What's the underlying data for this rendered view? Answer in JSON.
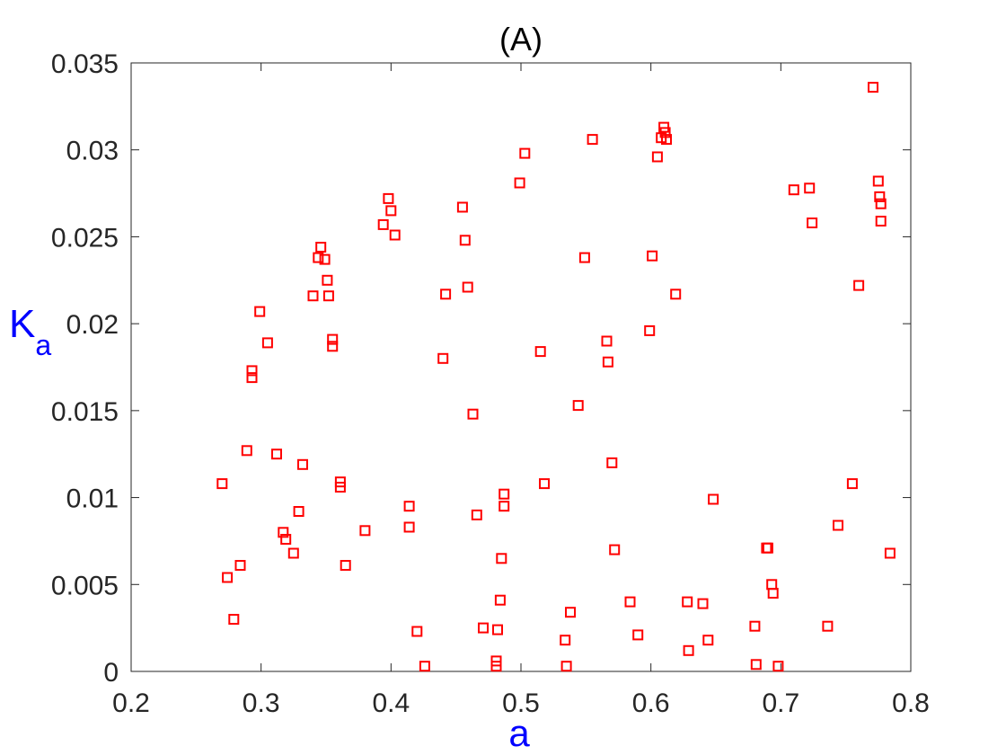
{
  "chart_data": {
    "type": "scatter",
    "title": "(A)",
    "xlabel": "a",
    "ylabel": {
      "main": "K",
      "sub": "a"
    },
    "xlim": [
      0.2,
      0.8
    ],
    "ylim": [
      0,
      0.035
    ],
    "x_ticks": [
      0.2,
      0.3,
      0.4,
      0.5,
      0.6,
      0.7,
      0.8
    ],
    "x_tick_labels": [
      "0.2",
      "0.3",
      "0.4",
      "0.5",
      "0.6",
      "0.7",
      "0.8"
    ],
    "y_ticks": [
      0,
      0.005,
      0.01,
      0.015,
      0.02,
      0.025,
      0.03,
      0.035
    ],
    "y_tick_labels": [
      "0",
      "0.005",
      "0.01",
      "0.015",
      "0.02",
      "0.025",
      "0.03",
      "0.035"
    ],
    "grid": false,
    "marker": "square",
    "marker_color": "#ff0000",
    "label_color": "#0000ff",
    "series": [
      {
        "points": [
          [
            0.27,
            0.0108
          ],
          [
            0.274,
            0.0054
          ],
          [
            0.279,
            0.003
          ],
          [
            0.284,
            0.0061
          ],
          [
            0.289,
            0.0127
          ],
          [
            0.293,
            0.0173
          ],
          [
            0.293,
            0.0169
          ],
          [
            0.299,
            0.0207
          ],
          [
            0.305,
            0.0189
          ],
          [
            0.312,
            0.0125
          ],
          [
            0.317,
            0.008
          ],
          [
            0.319,
            0.0076
          ],
          [
            0.325,
            0.0068
          ],
          [
            0.329,
            0.0092
          ],
          [
            0.332,
            0.0119
          ],
          [
            0.34,
            0.0216
          ],
          [
            0.344,
            0.0238
          ],
          [
            0.346,
            0.0244
          ],
          [
            0.349,
            0.0237
          ],
          [
            0.351,
            0.0225
          ],
          [
            0.352,
            0.0216
          ],
          [
            0.355,
            0.0191
          ],
          [
            0.355,
            0.0187
          ],
          [
            0.361,
            0.0109
          ],
          [
            0.361,
            0.0106
          ],
          [
            0.365,
            0.0061
          ],
          [
            0.38,
            0.0081
          ],
          [
            0.394,
            0.0257
          ],
          [
            0.398,
            0.0272
          ],
          [
            0.4,
            0.0265
          ],
          [
            0.403,
            0.0251
          ],
          [
            0.414,
            0.0095
          ],
          [
            0.414,
            0.0083
          ],
          [
            0.42,
            0.0023
          ],
          [
            0.426,
            0.0003
          ],
          [
            0.44,
            0.018
          ],
          [
            0.442,
            0.0217
          ],
          [
            0.455,
            0.0267
          ],
          [
            0.457,
            0.0248
          ],
          [
            0.459,
            0.0221
          ],
          [
            0.463,
            0.0148
          ],
          [
            0.466,
            0.009
          ],
          [
            0.471,
            0.0025
          ],
          [
            0.481,
            0.0006
          ],
          [
            0.481,
            0.0003
          ],
          [
            0.482,
            0.0024
          ],
          [
            0.484,
            0.0041
          ],
          [
            0.485,
            0.0065
          ],
          [
            0.487,
            0.0102
          ],
          [
            0.487,
            0.0095
          ],
          [
            0.499,
            0.0281
          ],
          [
            0.503,
            0.0298
          ],
          [
            0.515,
            0.0184
          ],
          [
            0.518,
            0.0108
          ],
          [
            0.534,
            0.0018
          ],
          [
            0.535,
            0.0003
          ],
          [
            0.538,
            0.0034
          ],
          [
            0.544,
            0.0153
          ],
          [
            0.549,
            0.0238
          ],
          [
            0.555,
            0.0306
          ],
          [
            0.566,
            0.019
          ],
          [
            0.567,
            0.0178
          ],
          [
            0.57,
            0.012
          ],
          [
            0.572,
            0.007
          ],
          [
            0.584,
            0.004
          ],
          [
            0.59,
            0.0021
          ],
          [
            0.599,
            0.0196
          ],
          [
            0.601,
            0.0239
          ],
          [
            0.605,
            0.0296
          ],
          [
            0.608,
            0.0307
          ],
          [
            0.61,
            0.0313
          ],
          [
            0.611,
            0.031
          ],
          [
            0.612,
            0.0306
          ],
          [
            0.619,
            0.0217
          ],
          [
            0.628,
            0.004
          ],
          [
            0.629,
            0.0012
          ],
          [
            0.64,
            0.0039
          ],
          [
            0.644,
            0.0018
          ],
          [
            0.648,
            0.0099
          ],
          [
            0.68,
            0.0026
          ],
          [
            0.681,
            0.0004
          ],
          [
            0.689,
            0.0071
          ],
          [
            0.69,
            0.0071
          ],
          [
            0.693,
            0.005
          ],
          [
            0.694,
            0.0045
          ],
          [
            0.698,
            0.0003
          ],
          [
            0.71,
            0.0277
          ],
          [
            0.722,
            0.0278
          ],
          [
            0.724,
            0.0258
          ],
          [
            0.736,
            0.0026
          ],
          [
            0.744,
            0.0084
          ],
          [
            0.755,
            0.0108
          ],
          [
            0.76,
            0.0222
          ],
          [
            0.771,
            0.0336
          ],
          [
            0.775,
            0.0282
          ],
          [
            0.776,
            0.0273
          ],
          [
            0.777,
            0.0269
          ],
          [
            0.777,
            0.0259
          ],
          [
            0.784,
            0.0068
          ]
        ]
      }
    ]
  }
}
